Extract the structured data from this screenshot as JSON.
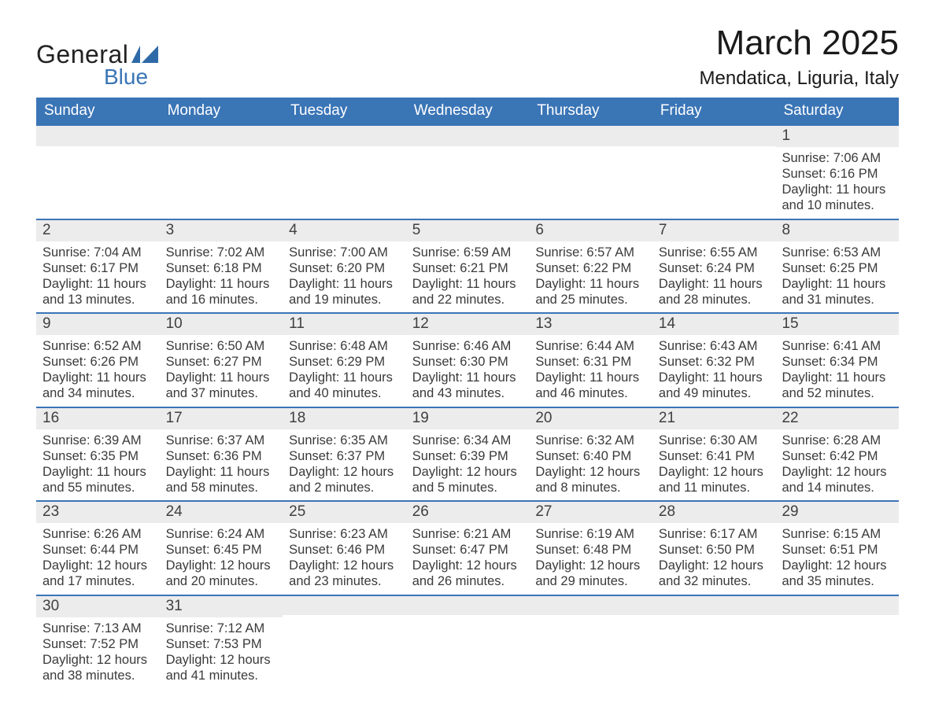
{
  "logo": {
    "text_general": "General",
    "text_blue": "Blue",
    "flag_color": "#2f6aa8"
  },
  "title": {
    "main": "March 2025",
    "sub": "Mendatica, Liguria, Italy"
  },
  "colors": {
    "header_bg": "#3a75b6",
    "header_text": "#ffffff",
    "strip_bg": "#ececec",
    "strip_border": "#3a75b6",
    "body_text": "#3a3a3a",
    "page_bg": "#ffffff"
  },
  "day_headers": [
    "Sunday",
    "Monday",
    "Tuesday",
    "Wednesday",
    "Thursday",
    "Friday",
    "Saturday"
  ],
  "weeks": [
    [
      {
        "n": "",
        "sr": "",
        "ss": "",
        "d1": "",
        "d2": ""
      },
      {
        "n": "",
        "sr": "",
        "ss": "",
        "d1": "",
        "d2": ""
      },
      {
        "n": "",
        "sr": "",
        "ss": "",
        "d1": "",
        "d2": ""
      },
      {
        "n": "",
        "sr": "",
        "ss": "",
        "d1": "",
        "d2": ""
      },
      {
        "n": "",
        "sr": "",
        "ss": "",
        "d1": "",
        "d2": ""
      },
      {
        "n": "",
        "sr": "",
        "ss": "",
        "d1": "",
        "d2": ""
      },
      {
        "n": "1",
        "sr": "Sunrise: 7:06 AM",
        "ss": "Sunset: 6:16 PM",
        "d1": "Daylight: 11 hours",
        "d2": "and 10 minutes."
      }
    ],
    [
      {
        "n": "2",
        "sr": "Sunrise: 7:04 AM",
        "ss": "Sunset: 6:17 PM",
        "d1": "Daylight: 11 hours",
        "d2": "and 13 minutes."
      },
      {
        "n": "3",
        "sr": "Sunrise: 7:02 AM",
        "ss": "Sunset: 6:18 PM",
        "d1": "Daylight: 11 hours",
        "d2": "and 16 minutes."
      },
      {
        "n": "4",
        "sr": "Sunrise: 7:00 AM",
        "ss": "Sunset: 6:20 PM",
        "d1": "Daylight: 11 hours",
        "d2": "and 19 minutes."
      },
      {
        "n": "5",
        "sr": "Sunrise: 6:59 AM",
        "ss": "Sunset: 6:21 PM",
        "d1": "Daylight: 11 hours",
        "d2": "and 22 minutes."
      },
      {
        "n": "6",
        "sr": "Sunrise: 6:57 AM",
        "ss": "Sunset: 6:22 PM",
        "d1": "Daylight: 11 hours",
        "d2": "and 25 minutes."
      },
      {
        "n": "7",
        "sr": "Sunrise: 6:55 AM",
        "ss": "Sunset: 6:24 PM",
        "d1": "Daylight: 11 hours",
        "d2": "and 28 minutes."
      },
      {
        "n": "8",
        "sr": "Sunrise: 6:53 AM",
        "ss": "Sunset: 6:25 PM",
        "d1": "Daylight: 11 hours",
        "d2": "and 31 minutes."
      }
    ],
    [
      {
        "n": "9",
        "sr": "Sunrise: 6:52 AM",
        "ss": "Sunset: 6:26 PM",
        "d1": "Daylight: 11 hours",
        "d2": "and 34 minutes."
      },
      {
        "n": "10",
        "sr": "Sunrise: 6:50 AM",
        "ss": "Sunset: 6:27 PM",
        "d1": "Daylight: 11 hours",
        "d2": "and 37 minutes."
      },
      {
        "n": "11",
        "sr": "Sunrise: 6:48 AM",
        "ss": "Sunset: 6:29 PM",
        "d1": "Daylight: 11 hours",
        "d2": "and 40 minutes."
      },
      {
        "n": "12",
        "sr": "Sunrise: 6:46 AM",
        "ss": "Sunset: 6:30 PM",
        "d1": "Daylight: 11 hours",
        "d2": "and 43 minutes."
      },
      {
        "n": "13",
        "sr": "Sunrise: 6:44 AM",
        "ss": "Sunset: 6:31 PM",
        "d1": "Daylight: 11 hours",
        "d2": "and 46 minutes."
      },
      {
        "n": "14",
        "sr": "Sunrise: 6:43 AM",
        "ss": "Sunset: 6:32 PM",
        "d1": "Daylight: 11 hours",
        "d2": "and 49 minutes."
      },
      {
        "n": "15",
        "sr": "Sunrise: 6:41 AM",
        "ss": "Sunset: 6:34 PM",
        "d1": "Daylight: 11 hours",
        "d2": "and 52 minutes."
      }
    ],
    [
      {
        "n": "16",
        "sr": "Sunrise: 6:39 AM",
        "ss": "Sunset: 6:35 PM",
        "d1": "Daylight: 11 hours",
        "d2": "and 55 minutes."
      },
      {
        "n": "17",
        "sr": "Sunrise: 6:37 AM",
        "ss": "Sunset: 6:36 PM",
        "d1": "Daylight: 11 hours",
        "d2": "and 58 minutes."
      },
      {
        "n": "18",
        "sr": "Sunrise: 6:35 AM",
        "ss": "Sunset: 6:37 PM",
        "d1": "Daylight: 12 hours",
        "d2": "and 2 minutes."
      },
      {
        "n": "19",
        "sr": "Sunrise: 6:34 AM",
        "ss": "Sunset: 6:39 PM",
        "d1": "Daylight: 12 hours",
        "d2": "and 5 minutes."
      },
      {
        "n": "20",
        "sr": "Sunrise: 6:32 AM",
        "ss": "Sunset: 6:40 PM",
        "d1": "Daylight: 12 hours",
        "d2": "and 8 minutes."
      },
      {
        "n": "21",
        "sr": "Sunrise: 6:30 AM",
        "ss": "Sunset: 6:41 PM",
        "d1": "Daylight: 12 hours",
        "d2": "and 11 minutes."
      },
      {
        "n": "22",
        "sr": "Sunrise: 6:28 AM",
        "ss": "Sunset: 6:42 PM",
        "d1": "Daylight: 12 hours",
        "d2": "and 14 minutes."
      }
    ],
    [
      {
        "n": "23",
        "sr": "Sunrise: 6:26 AM",
        "ss": "Sunset: 6:44 PM",
        "d1": "Daylight: 12 hours",
        "d2": "and 17 minutes."
      },
      {
        "n": "24",
        "sr": "Sunrise: 6:24 AM",
        "ss": "Sunset: 6:45 PM",
        "d1": "Daylight: 12 hours",
        "d2": "and 20 minutes."
      },
      {
        "n": "25",
        "sr": "Sunrise: 6:23 AM",
        "ss": "Sunset: 6:46 PM",
        "d1": "Daylight: 12 hours",
        "d2": "and 23 minutes."
      },
      {
        "n": "26",
        "sr": "Sunrise: 6:21 AM",
        "ss": "Sunset: 6:47 PM",
        "d1": "Daylight: 12 hours",
        "d2": "and 26 minutes."
      },
      {
        "n": "27",
        "sr": "Sunrise: 6:19 AM",
        "ss": "Sunset: 6:48 PM",
        "d1": "Daylight: 12 hours",
        "d2": "and 29 minutes."
      },
      {
        "n": "28",
        "sr": "Sunrise: 6:17 AM",
        "ss": "Sunset: 6:50 PM",
        "d1": "Daylight: 12 hours",
        "d2": "and 32 minutes."
      },
      {
        "n": "29",
        "sr": "Sunrise: 6:15 AM",
        "ss": "Sunset: 6:51 PM",
        "d1": "Daylight: 12 hours",
        "d2": "and 35 minutes."
      }
    ],
    [
      {
        "n": "30",
        "sr": "Sunrise: 7:13 AM",
        "ss": "Sunset: 7:52 PM",
        "d1": "Daylight: 12 hours",
        "d2": "and 38 minutes."
      },
      {
        "n": "31",
        "sr": "Sunrise: 7:12 AM",
        "ss": "Sunset: 7:53 PM",
        "d1": "Daylight: 12 hours",
        "d2": "and 41 minutes."
      },
      {
        "n": "",
        "sr": "",
        "ss": "",
        "d1": "",
        "d2": ""
      },
      {
        "n": "",
        "sr": "",
        "ss": "",
        "d1": "",
        "d2": ""
      },
      {
        "n": "",
        "sr": "",
        "ss": "",
        "d1": "",
        "d2": ""
      },
      {
        "n": "",
        "sr": "",
        "ss": "",
        "d1": "",
        "d2": ""
      },
      {
        "n": "",
        "sr": "",
        "ss": "",
        "d1": "",
        "d2": ""
      }
    ]
  ]
}
